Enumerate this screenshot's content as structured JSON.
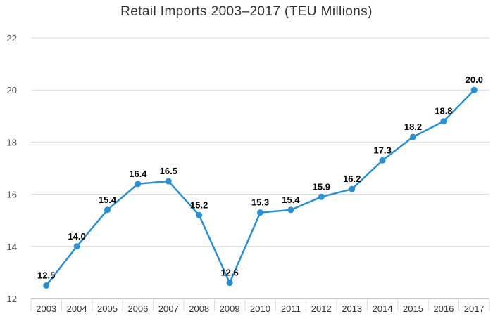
{
  "chart_data": {
    "type": "line",
    "title": "Retail Imports 2003–2017 (TEU Millions)",
    "xlabel": "",
    "ylabel": "",
    "ylim": [
      12,
      22
    ],
    "yticks": [
      "12",
      "14",
      "16",
      "18",
      "20",
      "22"
    ],
    "grid": true,
    "legend": "none",
    "categories": [
      "2003",
      "2004",
      "2005",
      "2006",
      "2007",
      "2008",
      "2009",
      "2010",
      "2011",
      "2012",
      "2013",
      "2014",
      "2015",
      "2016",
      "2017"
    ],
    "values": [
      12.5,
      14.0,
      15.4,
      16.4,
      16.5,
      15.2,
      12.6,
      15.3,
      15.4,
      15.9,
      16.2,
      17.3,
      18.2,
      18.8,
      20.0
    ],
    "data_labels": [
      "12.5",
      "14.0",
      "15.4",
      "16.4",
      "16.5",
      "15.2",
      "12.6",
      "15.3",
      "15.4",
      "15.9",
      "16.2",
      "17.3",
      "18.2",
      "18.8",
      "20.0"
    ],
    "colors": {
      "line": "#2b8fd1",
      "grid": "#d9d9d9",
      "axis": "#999999"
    }
  }
}
